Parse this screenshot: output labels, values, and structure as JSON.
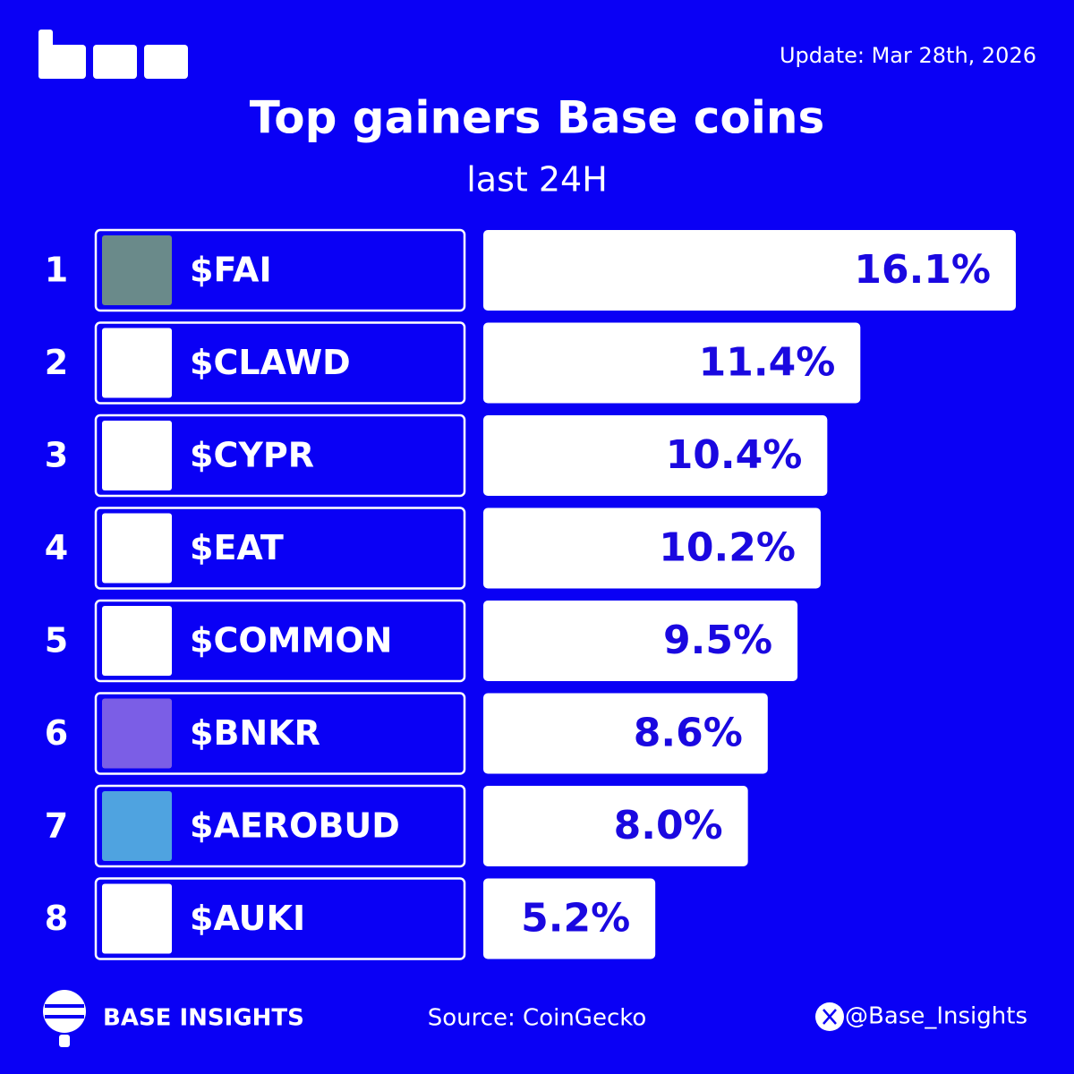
{
  "chart_data": {
    "type": "bar",
    "title": "Top gainers Base coins",
    "subtitle": "last 24H",
    "update": "Update: Mar 28th, 2026",
    "ranks": [
      1,
      2,
      3,
      4,
      5,
      6,
      7,
      8
    ],
    "categories": [
      "$FAI",
      "$CLAWD",
      "$CYPR",
      "$EAT",
      "$COMMON",
      "$BNKR",
      "$AEROBUD",
      "$AUKI"
    ],
    "values": [
      16.1,
      11.4,
      10.4,
      10.2,
      9.5,
      8.6,
      8.0,
      5.2
    ],
    "value_labels": [
      "16.1%",
      "11.4%",
      "10.4%",
      "10.2%",
      "9.5%",
      "8.6%",
      "8.0%",
      "5.2%"
    ],
    "color": "#ffffff",
    "label_color": "#1a08e0",
    "brand": "BASE INSIGHTS",
    "source": "Source: CoinGecko",
    "handle": "@Base_Insights"
  }
}
